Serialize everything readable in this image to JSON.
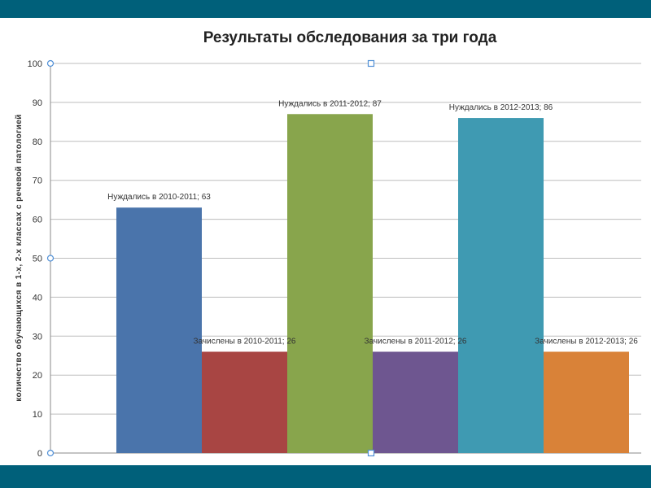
{
  "colors": {
    "band": "#00607a",
    "grid": "#bdbdbd",
    "axis": "#8a8a8a",
    "handle": "#4f8fd6"
  },
  "chart_data": {
    "type": "bar",
    "title": "Результаты обследования за три года",
    "xlabel": "",
    "ylabel": "количество обучающихся  в 1-х, 2-х классах  с речевой патологией",
    "ylim": [
      0,
      100
    ],
    "yticks": [
      0,
      10,
      20,
      30,
      40,
      50,
      60,
      70,
      80,
      90,
      100
    ],
    "grid": true,
    "legend": "none",
    "series": [
      {
        "name": "Нуждались в 2010-2011",
        "value": 63,
        "label": "Нуждались в 2010-2011; 63",
        "color": "#4a74ab"
      },
      {
        "name": "Зачислены в 2010-2011",
        "value": 26,
        "label": "Зачислены в 2010-2011; 26",
        "color": "#a84543"
      },
      {
        "name": "Нуждались в 2011-2012",
        "value": 87,
        "label": "Нуждались в 2011-2012; 87",
        "color": "#88a54c"
      },
      {
        "name": "Зачислены в 2011-2012",
        "value": 26,
        "label": "Зачислены в 2011-2012; 26",
        "color": "#6e5690"
      },
      {
        "name": "Нуждались в 2012-2013",
        "value": 86,
        "label": "Нуждались в 2012-2013; 86",
        "color": "#3f9ab2"
      },
      {
        "name": "Зачислены в 2012-2013",
        "value": 26,
        "label": "Зачислены в 2012-2013; 26",
        "color": "#d98238"
      }
    ]
  }
}
